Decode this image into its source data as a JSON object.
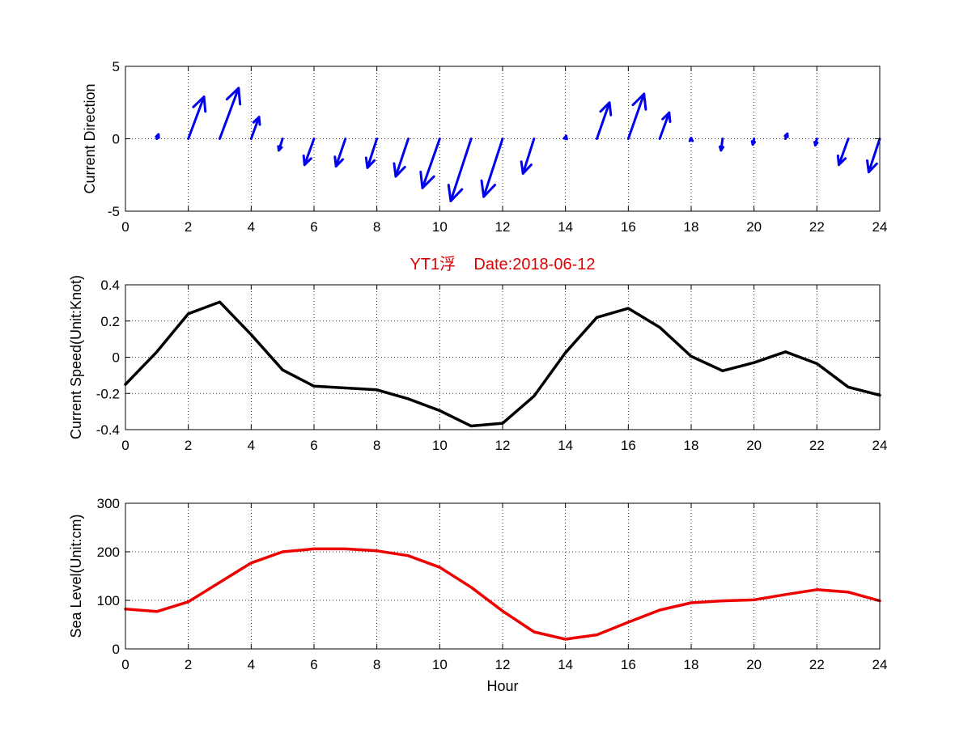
{
  "chart_data": [
    {
      "type": "quiver",
      "ylabel": "Current Direction",
      "xlim": [
        0,
        24
      ],
      "ylim": [
        -5,
        5
      ],
      "xticks": [
        0,
        2,
        4,
        6,
        8,
        10,
        12,
        14,
        16,
        18,
        20,
        22,
        24
      ],
      "yticks": [
        5,
        0,
        -5
      ],
      "grid": true,
      "color": "#0000ee",
      "vectors": [
        {
          "x": 0,
          "u": 0,
          "v": 0
        },
        {
          "x": 1,
          "u": 0.05,
          "v": 0.3
        },
        {
          "x": 2,
          "u": 0.5,
          "v": 2.9
        },
        {
          "x": 3,
          "u": 0.6,
          "v": 3.5
        },
        {
          "x": 4,
          "u": 0.25,
          "v": 1.5
        },
        {
          "x": 5,
          "u": -0.12,
          "v": -0.8
        },
        {
          "x": 6,
          "u": -0.3,
          "v": -1.8
        },
        {
          "x": 7,
          "u": -0.3,
          "v": -1.9
        },
        {
          "x": 8,
          "u": -0.3,
          "v": -2.0
        },
        {
          "x": 9,
          "u": -0.4,
          "v": -2.6
        },
        {
          "x": 10,
          "u": -0.55,
          "v": -3.4
        },
        {
          "x": 11,
          "u": -0.65,
          "v": -4.3
        },
        {
          "x": 12,
          "u": -0.6,
          "v": -4.0
        },
        {
          "x": 13,
          "u": -0.35,
          "v": -2.4
        },
        {
          "x": 14,
          "u": 0.02,
          "v": 0.2
        },
        {
          "x": 15,
          "u": 0.4,
          "v": 2.5
        },
        {
          "x": 16,
          "u": 0.5,
          "v": 3.1
        },
        {
          "x": 17,
          "u": 0.3,
          "v": 1.8
        },
        {
          "x": 18,
          "u": 0.0,
          "v": 0.05
        },
        {
          "x": 19,
          "u": -0.05,
          "v": -0.8
        },
        {
          "x": 20,
          "u": -0.04,
          "v": -0.4
        },
        {
          "x": 21,
          "u": 0.06,
          "v": 0.35
        },
        {
          "x": 22,
          "u": -0.05,
          "v": -0.45
        },
        {
          "x": 23,
          "u": -0.3,
          "v": -1.8
        },
        {
          "x": 24,
          "u": -0.35,
          "v": -2.3
        }
      ]
    },
    {
      "type": "line",
      "title": "YT1浮    Date:2018-06-12",
      "title_color": "#dd0000",
      "ylabel": "Current Speed(Unit:Knot)",
      "xlim": [
        0,
        24
      ],
      "ylim": [
        -0.4,
        0.4
      ],
      "xticks": [
        0,
        2,
        4,
        6,
        8,
        10,
        12,
        14,
        16,
        18,
        20,
        22,
        24
      ],
      "yticks": [
        0.4,
        0.2,
        0,
        -0.2,
        -0.4
      ],
      "grid": true,
      "color": "#000000",
      "x": [
        0,
        1,
        2,
        3,
        4,
        5,
        6,
        7,
        8,
        9,
        10,
        11,
        12,
        13,
        14,
        15,
        16,
        17,
        18,
        19,
        20,
        21,
        22,
        23,
        24
      ],
      "y": [
        -0.15,
        0.03,
        0.24,
        0.305,
        0.125,
        -0.07,
        -0.16,
        -0.17,
        -0.18,
        -0.23,
        -0.295,
        -0.38,
        -0.365,
        -0.215,
        0.025,
        0.22,
        0.27,
        0.165,
        0.005,
        -0.075,
        -0.03,
        0.03,
        -0.035,
        -0.165,
        -0.21
      ]
    },
    {
      "type": "line",
      "xlabel": "Hour",
      "ylabel": "Sea Level(Unit:cm)",
      "xlim": [
        0,
        24
      ],
      "ylim": [
        0,
        300
      ],
      "xticks": [
        0,
        2,
        4,
        6,
        8,
        10,
        12,
        14,
        16,
        18,
        20,
        22,
        24
      ],
      "yticks": [
        300,
        200,
        100,
        0
      ],
      "grid": true,
      "color": "#ee0000",
      "x": [
        0,
        1,
        2,
        3,
        4,
        5,
        6,
        7,
        8,
        9,
        10,
        11,
        12,
        13,
        14,
        15,
        16,
        17,
        18,
        19,
        20,
        21,
        22,
        23,
        24
      ],
      "y": [
        82,
        77,
        97,
        137,
        177,
        200,
        206,
        206,
        202,
        192,
        168,
        127,
        78,
        35,
        20,
        29,
        55,
        80,
        95,
        99,
        101,
        112,
        122,
        117,
        99
      ]
    }
  ]
}
